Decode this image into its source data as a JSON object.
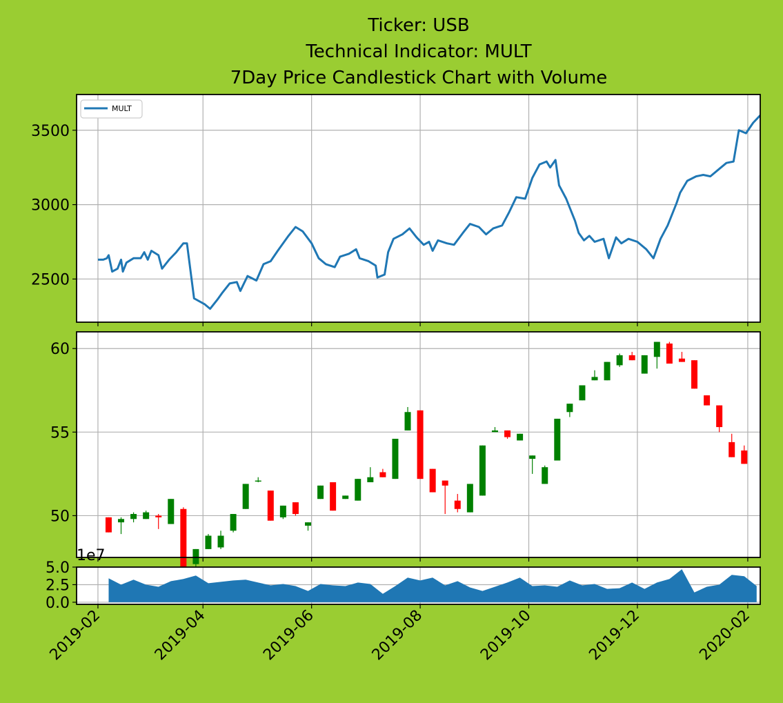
{
  "colors": {
    "background": "#9acd32",
    "panel": "#ffffff",
    "grid": "#b0b0b0",
    "line": "#1f77b4",
    "up": "#008000",
    "down": "#ff0000",
    "volume": "#1f77b4"
  },
  "chart_data": {
    "type": "candlestick+line+area",
    "title": [
      "Ticker: USB",
      "Technical Indicator: MULT",
      "7Day Price Candlestick Chart with Volume"
    ],
    "x_range": [
      "2019-01-20",
      "2020-02-08"
    ],
    "x_ticks": [
      "2019-02-01",
      "2019-04-01",
      "2019-06-01",
      "2019-08-01",
      "2019-10-01",
      "2019-12-01",
      "2020-02-01"
    ],
    "x_tick_labels": [
      "2019-02",
      "2019-04",
      "2019-06",
      "2019-08",
      "2019-10",
      "2019-12",
      "2020-02"
    ],
    "indicator": {
      "legend": "MULT",
      "legend_position": "upper-left",
      "ylim": [
        2210,
        3740
      ],
      "yticks": [
        2500,
        3000,
        3500
      ],
      "ytick_labels": [
        "2500",
        "3000",
        "3500"
      ],
      "points": [
        [
          "2019-02-01",
          2630
        ],
        [
          "2019-02-04",
          2630
        ],
        [
          "2019-02-06",
          2640
        ],
        [
          "2019-02-07",
          2660
        ],
        [
          "2019-02-09",
          2550
        ],
        [
          "2019-02-12",
          2570
        ],
        [
          "2019-02-14",
          2630
        ],
        [
          "2019-02-15",
          2550
        ],
        [
          "2019-02-17",
          2610
        ],
        [
          "2019-02-21",
          2640
        ],
        [
          "2019-02-25",
          2640
        ],
        [
          "2019-02-27",
          2680
        ],
        [
          "2019-03-01",
          2630
        ],
        [
          "2019-03-03",
          2690
        ],
        [
          "2019-03-07",
          2660
        ],
        [
          "2019-03-09",
          2570
        ],
        [
          "2019-03-13",
          2630
        ],
        [
          "2019-03-17",
          2680
        ],
        [
          "2019-03-21",
          2740
        ],
        [
          "2019-03-23",
          2740
        ],
        [
          "2019-03-27",
          2370
        ],
        [
          "2019-04-02",
          2330
        ],
        [
          "2019-04-05",
          2300
        ],
        [
          "2019-04-09",
          2360
        ],
        [
          "2019-04-12",
          2410
        ],
        [
          "2019-04-16",
          2470
        ],
        [
          "2019-04-20",
          2480
        ],
        [
          "2019-04-22",
          2420
        ],
        [
          "2019-04-26",
          2520
        ],
        [
          "2019-05-01",
          2490
        ],
        [
          "2019-05-05",
          2600
        ],
        [
          "2019-05-09",
          2620
        ],
        [
          "2019-05-13",
          2690
        ],
        [
          "2019-05-19",
          2790
        ],
        [
          "2019-05-23",
          2850
        ],
        [
          "2019-05-27",
          2820
        ],
        [
          "2019-06-01",
          2740
        ],
        [
          "2019-06-05",
          2640
        ],
        [
          "2019-06-09",
          2600
        ],
        [
          "2019-06-14",
          2580
        ],
        [
          "2019-06-17",
          2650
        ],
        [
          "2019-06-22",
          2670
        ],
        [
          "2019-06-26",
          2700
        ],
        [
          "2019-06-28",
          2640
        ],
        [
          "2019-07-03",
          2620
        ],
        [
          "2019-07-07",
          2590
        ],
        [
          "2019-07-08",
          2510
        ],
        [
          "2019-07-12",
          2530
        ],
        [
          "2019-07-14",
          2680
        ],
        [
          "2019-07-17",
          2770
        ],
        [
          "2019-07-22",
          2800
        ],
        [
          "2019-07-26",
          2840
        ],
        [
          "2019-07-30",
          2780
        ],
        [
          "2019-08-03",
          2730
        ],
        [
          "2019-08-06",
          2750
        ],
        [
          "2019-08-08",
          2690
        ],
        [
          "2019-08-11",
          2760
        ],
        [
          "2019-08-16",
          2740
        ],
        [
          "2019-08-20",
          2730
        ],
        [
          "2019-08-25",
          2810
        ],
        [
          "2019-08-29",
          2870
        ],
        [
          "2019-09-03",
          2850
        ],
        [
          "2019-09-07",
          2800
        ],
        [
          "2019-09-11",
          2840
        ],
        [
          "2019-09-16",
          2860
        ],
        [
          "2019-09-20",
          2950
        ],
        [
          "2019-09-24",
          3050
        ],
        [
          "2019-09-29",
          3040
        ],
        [
          "2019-10-03",
          3180
        ],
        [
          "2019-10-07",
          3270
        ],
        [
          "2019-10-11",
          3290
        ],
        [
          "2019-10-13",
          3250
        ],
        [
          "2019-10-16",
          3300
        ],
        [
          "2019-10-18",
          3130
        ],
        [
          "2019-10-22",
          3040
        ],
        [
          "2019-10-27",
          2890
        ],
        [
          "2019-10-29",
          2810
        ],
        [
          "2019-11-01",
          2760
        ],
        [
          "2019-11-04",
          2790
        ],
        [
          "2019-11-07",
          2750
        ],
        [
          "2019-11-12",
          2770
        ],
        [
          "2019-11-15",
          2640
        ],
        [
          "2019-11-19",
          2780
        ],
        [
          "2019-11-22",
          2740
        ],
        [
          "2019-11-26",
          2770
        ],
        [
          "2019-12-01",
          2750
        ],
        [
          "2019-12-06",
          2700
        ],
        [
          "2019-12-10",
          2640
        ],
        [
          "2019-12-14",
          2770
        ],
        [
          "2019-12-18",
          2860
        ],
        [
          "2019-12-23",
          3010
        ],
        [
          "2019-12-25",
          3080
        ],
        [
          "2019-12-29",
          3160
        ],
        [
          "2020-01-03",
          3190
        ],
        [
          "2020-01-07",
          3200
        ],
        [
          "2020-01-11",
          3190
        ],
        [
          "2020-01-16",
          3240
        ],
        [
          "2020-01-20",
          3280
        ],
        [
          "2020-01-24",
          3290
        ],
        [
          "2020-01-27",
          3500
        ],
        [
          "2020-01-31",
          3480
        ],
        [
          "2020-02-04",
          3550
        ],
        [
          "2020-02-08",
          3600
        ]
      ]
    },
    "price": {
      "ylim": [
        47.5,
        61.0
      ],
      "yticks": [
        50,
        55,
        60
      ],
      "ytick_labels": [
        "50",
        "55",
        "60"
      ],
      "candles": [
        [
          "2019-02-07",
          49.9,
          49.0,
          49.9,
          49.0
        ],
        [
          "2019-02-14",
          49.6,
          49.8,
          49.9,
          48.9
        ],
        [
          "2019-02-21",
          49.8,
          50.1,
          50.2,
          49.6
        ],
        [
          "2019-02-28",
          49.8,
          50.2,
          50.3,
          49.8
        ],
        [
          "2019-03-07",
          50.0,
          49.9,
          50.1,
          49.2
        ],
        [
          "2019-03-14",
          49.5,
          51.0,
          51.0,
          49.5
        ],
        [
          "2019-03-21",
          50.4,
          46.0,
          50.5,
          46.0
        ],
        [
          "2019-03-28",
          47.1,
          48.0,
          48.0,
          46.8
        ],
        [
          "2019-04-04",
          48.0,
          48.8,
          48.9,
          48.0
        ],
        [
          "2019-04-11",
          48.1,
          48.8,
          49.1,
          48.0
        ],
        [
          "2019-04-18",
          49.1,
          50.1,
          50.1,
          49.0
        ],
        [
          "2019-04-25",
          50.4,
          51.9,
          51.9,
          50.4
        ],
        [
          "2019-05-02",
          52.1,
          52.1,
          52.3,
          52.0
        ],
        [
          "2019-05-09",
          51.5,
          49.7,
          51.5,
          49.7
        ],
        [
          "2019-05-16",
          49.9,
          50.6,
          50.6,
          49.8
        ],
        [
          "2019-05-23",
          50.8,
          50.1,
          50.8,
          50.0
        ],
        [
          "2019-05-30",
          49.4,
          49.6,
          49.6,
          49.1
        ],
        [
          "2019-06-06",
          51.0,
          51.8,
          51.8,
          51.0
        ],
        [
          "2019-06-13",
          52.0,
          50.3,
          52.0,
          50.3
        ],
        [
          "2019-06-20",
          51.0,
          51.2,
          51.2,
          51.0
        ],
        [
          "2019-06-27",
          50.9,
          52.2,
          52.2,
          50.9
        ],
        [
          "2019-07-04",
          52.0,
          52.3,
          52.9,
          52.0
        ],
        [
          "2019-07-11",
          52.6,
          52.3,
          52.8,
          52.3
        ],
        [
          "2019-07-18",
          52.2,
          54.6,
          54.6,
          52.2
        ],
        [
          "2019-07-25",
          55.1,
          56.2,
          56.5,
          55.1
        ],
        [
          "2019-08-01",
          56.3,
          52.2,
          56.3,
          52.2
        ],
        [
          "2019-08-08",
          52.8,
          51.4,
          52.8,
          51.4
        ],
        [
          "2019-08-15",
          52.1,
          51.8,
          52.1,
          50.1
        ],
        [
          "2019-08-22",
          50.9,
          50.4,
          51.3,
          50.2
        ],
        [
          "2019-08-29",
          50.2,
          51.9,
          51.9,
          50.2
        ],
        [
          "2019-09-05",
          51.2,
          54.2,
          54.2,
          51.2
        ],
        [
          "2019-09-12",
          55.0,
          55.1,
          55.3,
          55.0
        ],
        [
          "2019-09-19",
          55.1,
          54.7,
          55.1,
          54.6
        ],
        [
          "2019-09-26",
          54.5,
          54.9,
          54.9,
          54.5
        ],
        [
          "2019-10-03",
          53.4,
          53.6,
          53.6,
          52.5
        ],
        [
          "2019-10-10",
          51.9,
          52.9,
          53.0,
          51.9
        ],
        [
          "2019-10-17",
          53.3,
          55.8,
          55.8,
          53.3
        ],
        [
          "2019-10-24",
          56.2,
          56.7,
          56.7,
          55.9
        ],
        [
          "2019-10-31",
          56.9,
          57.8,
          57.8,
          56.9
        ],
        [
          "2019-11-07",
          58.1,
          58.3,
          58.7,
          58.1
        ],
        [
          "2019-11-14",
          58.1,
          59.2,
          59.2,
          58.1
        ],
        [
          "2019-11-21",
          59.0,
          59.6,
          59.7,
          58.9
        ],
        [
          "2019-11-28",
          59.6,
          59.3,
          59.8,
          59.3
        ],
        [
          "2019-12-05",
          58.5,
          59.6,
          59.6,
          58.5
        ],
        [
          "2019-12-12",
          59.5,
          60.4,
          60.4,
          58.8
        ],
        [
          "2019-12-19",
          60.3,
          59.1,
          60.4,
          59.1
        ],
        [
          "2019-12-26",
          59.4,
          59.2,
          59.8,
          59.2
        ],
        [
          "2020-01-02",
          59.3,
          57.6,
          59.3,
          57.6
        ],
        [
          "2020-01-09",
          57.2,
          56.6,
          57.2,
          56.6
        ],
        [
          "2020-01-16",
          56.6,
          55.3,
          56.6,
          55.0
        ],
        [
          "2020-01-23",
          54.4,
          53.5,
          54.9,
          53.5
        ],
        [
          "2020-01-30",
          53.9,
          53.1,
          54.2,
          53.1
        ]
      ]
    },
    "volume": {
      "ylim": [
        -0.3,
        5.0
      ],
      "yticks": [
        0.0,
        2.5,
        5.0
      ],
      "ytick_labels": [
        "0.0",
        "2.5",
        "5.0"
      ],
      "offset_label": "1e7",
      "points": [
        [
          "2019-02-07",
          3.4
        ],
        [
          "2019-02-14",
          2.5
        ],
        [
          "2019-02-21",
          3.2
        ],
        [
          "2019-02-28",
          2.5
        ],
        [
          "2019-03-07",
          2.2
        ],
        [
          "2019-03-14",
          3.0
        ],
        [
          "2019-03-21",
          3.3
        ],
        [
          "2019-03-28",
          3.8
        ],
        [
          "2019-04-04",
          2.7
        ],
        [
          "2019-04-11",
          2.9
        ],
        [
          "2019-04-18",
          3.1
        ],
        [
          "2019-04-25",
          3.2
        ],
        [
          "2019-05-02",
          2.8
        ],
        [
          "2019-05-09",
          2.4
        ],
        [
          "2019-05-16",
          2.6
        ],
        [
          "2019-05-23",
          2.3
        ],
        [
          "2019-05-30",
          1.6
        ],
        [
          "2019-06-06",
          2.6
        ],
        [
          "2019-06-13",
          2.4
        ],
        [
          "2019-06-20",
          2.3
        ],
        [
          "2019-06-27",
          2.8
        ],
        [
          "2019-07-04",
          2.6
        ],
        [
          "2019-07-11",
          1.2
        ],
        [
          "2019-07-18",
          2.3
        ],
        [
          "2019-07-25",
          3.5
        ],
        [
          "2019-08-01",
          3.1
        ],
        [
          "2019-08-08",
          3.5
        ],
        [
          "2019-08-15",
          2.4
        ],
        [
          "2019-08-22",
          3.0
        ],
        [
          "2019-08-29",
          2.1
        ],
        [
          "2019-09-05",
          1.6
        ],
        [
          "2019-09-12",
          2.2
        ],
        [
          "2019-09-19",
          2.8
        ],
        [
          "2019-09-26",
          3.5
        ],
        [
          "2019-10-03",
          2.3
        ],
        [
          "2019-10-10",
          2.4
        ],
        [
          "2019-10-17",
          2.2
        ],
        [
          "2019-10-24",
          3.1
        ],
        [
          "2019-10-31",
          2.4
        ],
        [
          "2019-11-07",
          2.6
        ],
        [
          "2019-11-14",
          1.9
        ],
        [
          "2019-11-21",
          2.0
        ],
        [
          "2019-11-28",
          2.8
        ],
        [
          "2019-12-05",
          1.9
        ],
        [
          "2019-12-12",
          2.8
        ],
        [
          "2019-12-19",
          3.3
        ],
        [
          "2019-12-26",
          4.7
        ],
        [
          "2020-01-02",
          1.4
        ],
        [
          "2020-01-09",
          2.2
        ],
        [
          "2020-01-16",
          2.5
        ],
        [
          "2020-01-23",
          3.9
        ],
        [
          "2020-01-30",
          3.7
        ],
        [
          "2020-02-06",
          2.3
        ]
      ]
    }
  }
}
